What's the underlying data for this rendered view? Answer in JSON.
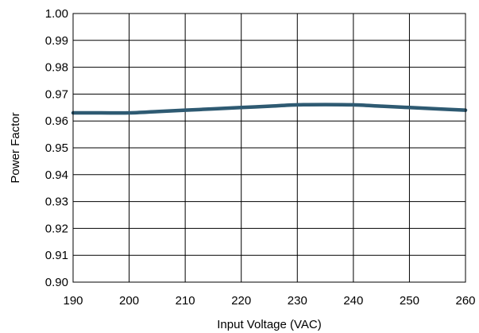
{
  "chart_data": {
    "type": "line",
    "title": "",
    "xlabel": "Input Voltage (VAC)",
    "ylabel": "Power Factor",
    "xlim": [
      190,
      260
    ],
    "ylim": [
      0.9,
      1.0
    ],
    "grid": true,
    "legend": "none",
    "x_ticks": [
      "190",
      "200",
      "210",
      "220",
      "230",
      "240",
      "250",
      "260"
    ],
    "y_ticks": [
      "0.90",
      "0.91",
      "0.92",
      "0.93",
      "0.94",
      "0.95",
      "0.96",
      "0.97",
      "0.98",
      "0.99",
      "1.00"
    ],
    "series": [
      {
        "color": "#2e5a72",
        "x": [
          190,
          195,
          200,
          205,
          210,
          215,
          220,
          225,
          230,
          235,
          240,
          245,
          250,
          255,
          260
        ],
        "y": [
          0.963,
          0.963,
          0.963,
          0.9635,
          0.964,
          0.9645,
          0.965,
          0.9655,
          0.966,
          0.9661,
          0.966,
          0.9655,
          0.965,
          0.9645,
          0.964
        ]
      }
    ]
  }
}
